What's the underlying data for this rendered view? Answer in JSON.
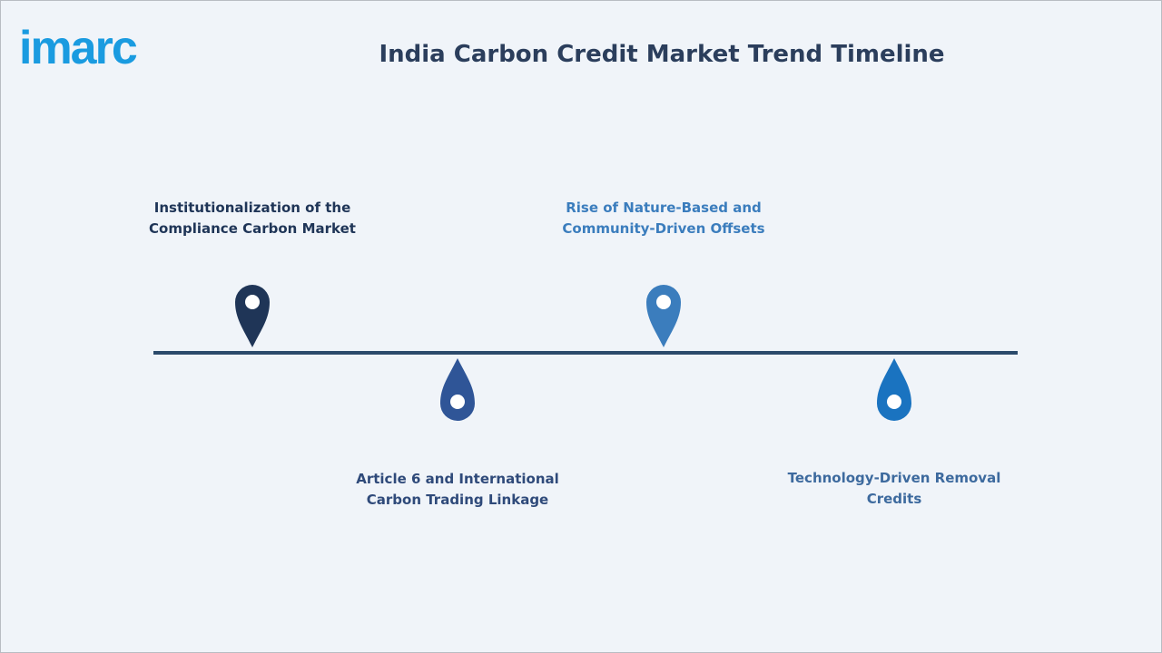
{
  "header": {
    "logo": "imarc",
    "title": "India Carbon Credit Market Trend Timeline"
  },
  "timeline": [
    {
      "label": "Institutionalization of the Compliance Carbon Market"
    },
    {
      "label": "Article 6 and International Carbon Trading Linkage"
    },
    {
      "label": "Rise of Nature-Based and Community-Driven Offsets"
    },
    {
      "label": "Technology-Driven Removal Credits"
    }
  ]
}
